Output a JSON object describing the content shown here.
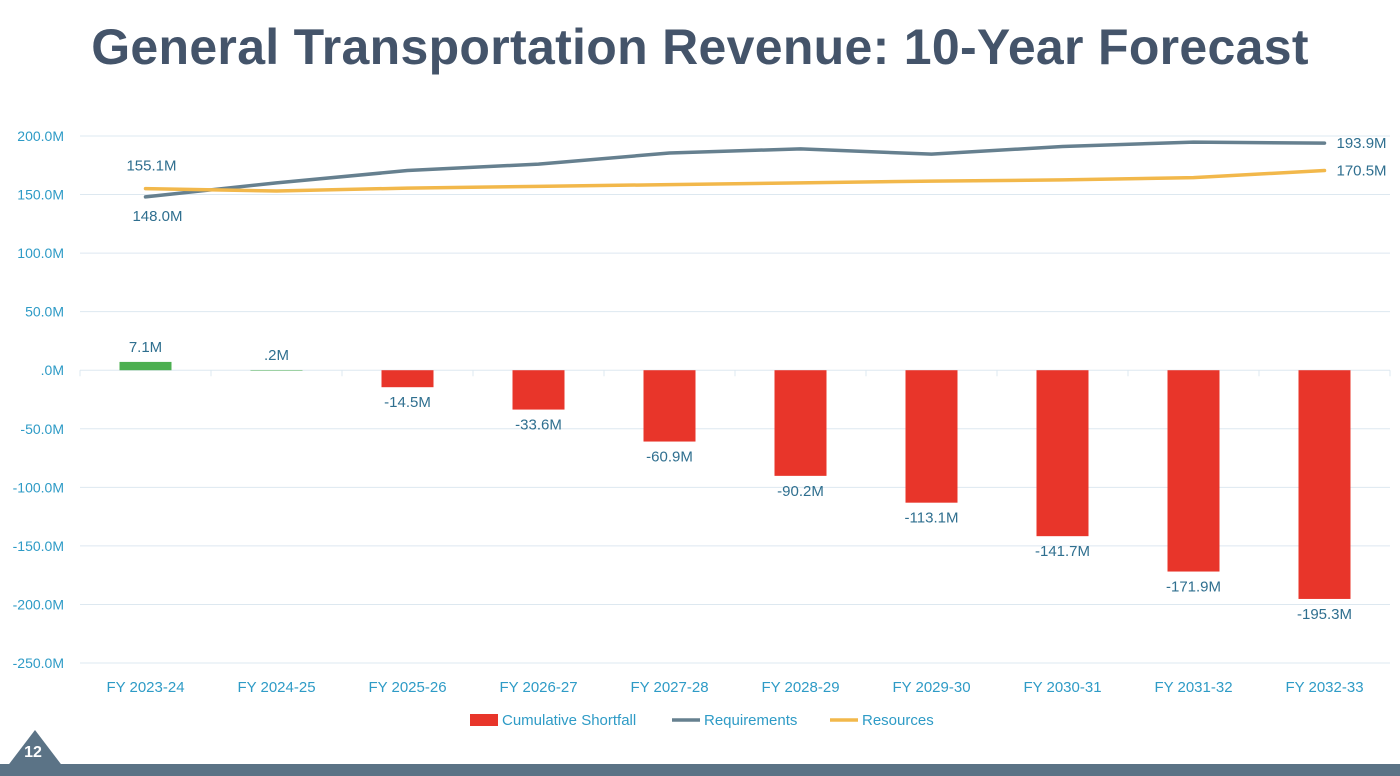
{
  "title": "General Transportation Revenue: 10-Year Forecast",
  "page_number": "12",
  "colors": {
    "shortfall_negative": "#e8352a",
    "shortfall_positive": "#4caf50",
    "requirements": "#66808f",
    "resources": "#f2b84b",
    "axis_text": "#2e9bc6",
    "grid": "#dde8f0"
  },
  "chart_data": {
    "type": "bar",
    "title": "",
    "xlabel": "",
    "ylabel": "",
    "ylim": [
      -250,
      200
    ],
    "ytick_values": [
      200,
      150,
      100,
      50,
      0,
      -50,
      -100,
      -150,
      -200,
      -250
    ],
    "ytick_labels": [
      "200.0M",
      "150.0M",
      "100.0M",
      "50.0M",
      ".0M",
      "-50.0M",
      "-100.0M",
      "-150.0M",
      "-200.0M",
      "-250.0M"
    ],
    "categories": [
      "FY 2023-24",
      "FY 2024-25",
      "FY 2025-26",
      "FY 2026-27",
      "FY 2027-28",
      "FY 2028-29",
      "FY 2029-30",
      "FY 2030-31",
      "FY 2031-32",
      "FY 2032-33"
    ],
    "grid": true,
    "legend_position": "bottom",
    "series": [
      {
        "name": "Cumulative Shortfall",
        "type": "bar",
        "values": [
          7.1,
          0.2,
          -14.5,
          -33.6,
          -60.9,
          -90.2,
          -113.1,
          -141.7,
          -171.9,
          -195.3
        ],
        "labels": [
          "7.1M",
          ".2M",
          "-14.5M",
          "-33.6M",
          "-60.9M",
          "-90.2M",
          "-113.1M",
          "-141.7M",
          "-171.9M",
          "-195.3M"
        ]
      },
      {
        "name": "Requirements",
        "type": "line",
        "values": [
          148.0,
          160.0,
          170.5,
          176.0,
          185.5,
          189.0,
          184.5,
          191.0,
          194.8,
          193.9
        ],
        "labels": [
          "148.0M",
          "",
          "",
          "",
          "",
          "",
          "",
          "",
          "",
          "193.9M"
        ]
      },
      {
        "name": "Resources",
        "type": "line",
        "values": [
          155.1,
          153.0,
          155.5,
          157.0,
          158.5,
          160.0,
          161.5,
          162.5,
          164.5,
          170.5
        ],
        "labels": [
          "155.1M",
          "",
          "",
          "",
          "",
          "",
          "",
          "",
          "",
          "170.5M"
        ]
      }
    ]
  }
}
